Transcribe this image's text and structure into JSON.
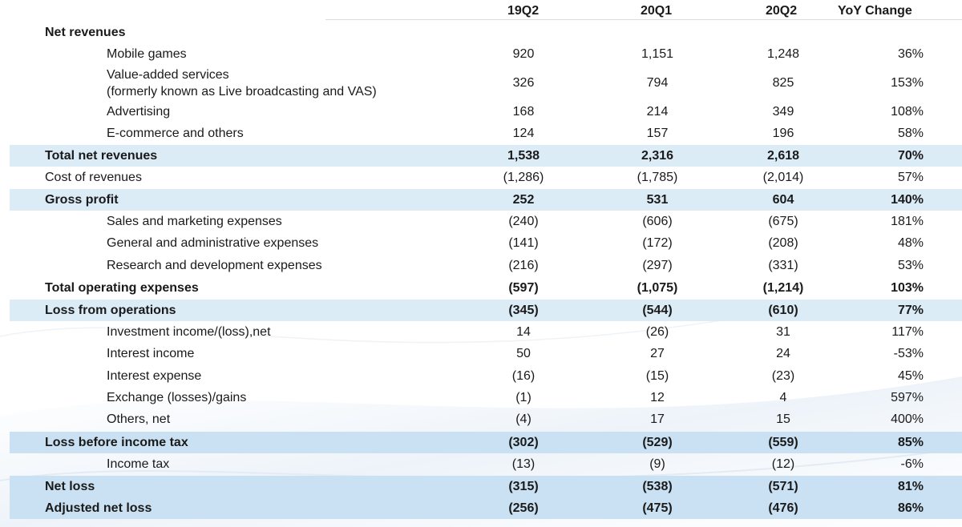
{
  "columns": {
    "c1": "19Q2",
    "c2": "20Q1",
    "c3": "20Q2",
    "c4": "YoY Change"
  },
  "rows": [
    {
      "label": "Net revenues",
      "c1": "",
      "c2": "",
      "c3": "",
      "c4": ""
    },
    {
      "label": "Mobile games",
      "c1": "920",
      "c2": "1,151",
      "c3": "1,248",
      "c4": "36%"
    },
    {
      "label": "Value-added services",
      "label2": "(formerly known as Live broadcasting and VAS)",
      "c1": "326",
      "c2": "794",
      "c3": "825",
      "c4": "153%"
    },
    {
      "label": "Advertising",
      "c1": "168",
      "c2": "214",
      "c3": "349",
      "c4": "108%"
    },
    {
      "label": "E-commerce and others",
      "c1": "124",
      "c2": "157",
      "c3": "196",
      "c4": "58%"
    },
    {
      "label": "Total net revenues",
      "c1": "1,538",
      "c2": "2,316",
      "c3": "2,618",
      "c4": "70%"
    },
    {
      "label": "Cost of revenues",
      "c1": "(1,286)",
      "c2": "(1,785)",
      "c3": "(2,014)",
      "c4": "57%"
    },
    {
      "label": "Gross profit",
      "c1": "252",
      "c2": "531",
      "c3": "604",
      "c4": "140%"
    },
    {
      "label": "Sales and marketing expenses",
      "c1": "(240)",
      "c2": "(606)",
      "c3": "(675)",
      "c4": "181%"
    },
    {
      "label": "General and administrative expenses",
      "c1": "(141)",
      "c2": "(172)",
      "c3": "(208)",
      "c4": "48%"
    },
    {
      "label": "Research and development expenses",
      "c1": "(216)",
      "c2": "(297)",
      "c3": "(331)",
      "c4": "53%"
    },
    {
      "label": "Total operating expenses",
      "c1": "(597)",
      "c2": "(1,075)",
      "c3": "(1,214)",
      "c4": "103%"
    },
    {
      "label": "Loss from operations",
      "c1": "(345)",
      "c2": "(544)",
      "c3": "(610)",
      "c4": "77%"
    },
    {
      "label": "Investment income/(loss),net",
      "c1": "14",
      "c2": "(26)",
      "c3": "31",
      "c4": "117%"
    },
    {
      "label": "Interest income",
      "c1": "50",
      "c2": "27",
      "c3": "24",
      "c4": "-53%"
    },
    {
      "label": "Interest expense",
      "c1": "(16)",
      "c2": "(15)",
      "c3": "(23)",
      "c4": "45%"
    },
    {
      "label": "Exchange (losses)/gains",
      "c1": "(1)",
      "c2": "12",
      "c3": "4",
      "c4": "597%"
    },
    {
      "label": "Others, net",
      "c1": "(4)",
      "c2": "17",
      "c3": "15",
      "c4": "400%"
    },
    {
      "label": "Loss before income tax",
      "c1": "(302)",
      "c2": "(529)",
      "c3": "(559)",
      "c4": "85%"
    },
    {
      "label": "Income tax",
      "c1": "(13)",
      "c2": "(9)",
      "c3": "(12)",
      "c4": "-6%"
    },
    {
      "label": "Net loss",
      "c1": "(315)",
      "c2": "(538)",
      "c3": "(571)",
      "c4": "81%"
    },
    {
      "label": "Adjusted net loss",
      "c1": "(256)",
      "c2": "(475)",
      "c3": "(476)",
      "c4": "86%"
    }
  ],
  "colors": {
    "highlight_light": "#dcecf7",
    "highlight_mid": "#c9e1f2",
    "text": "#1a1a1a",
    "rule": "#d9dde3"
  }
}
